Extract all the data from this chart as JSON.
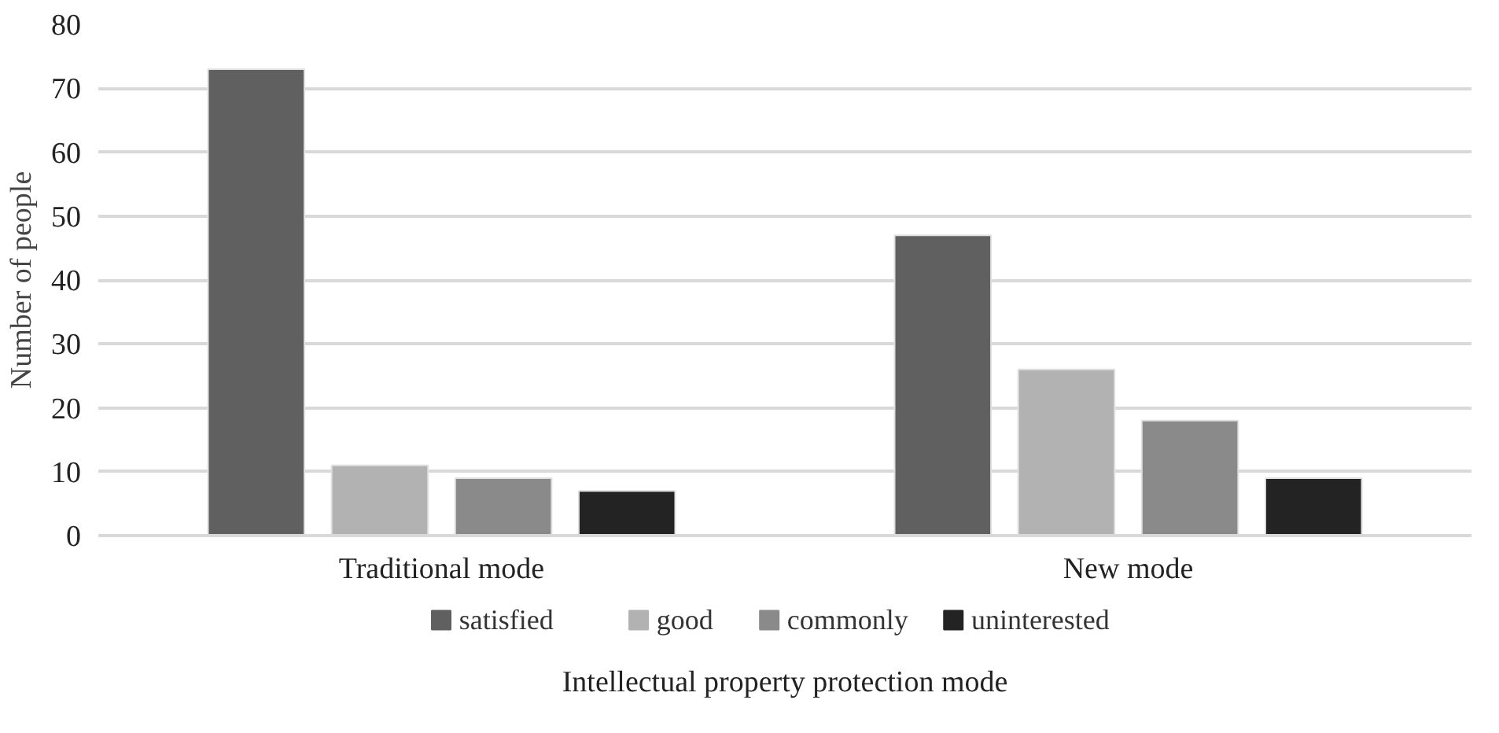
{
  "chart_data": {
    "type": "bar",
    "xlabel": "Intellectual property protection mode",
    "ylabel": "Number of people",
    "categories": [
      "Traditional mode",
      "New mode"
    ],
    "series": [
      {
        "name": "satisfied",
        "color": "#606060",
        "values": [
          73,
          47
        ]
      },
      {
        "name": "good",
        "color": "#b2b2b2",
        "values": [
          11,
          26
        ]
      },
      {
        "name": "commonly",
        "color": "#8a8a8a",
        "values": [
          9,
          18
        ]
      },
      {
        "name": "uninterested",
        "color": "#232323",
        "values": [
          7,
          9
        ]
      }
    ],
    "ylim": [
      0,
      80
    ],
    "yticks": [
      0,
      10,
      20,
      30,
      40,
      50,
      60,
      70,
      80
    ],
    "grid": "y",
    "legend": "bottom"
  }
}
